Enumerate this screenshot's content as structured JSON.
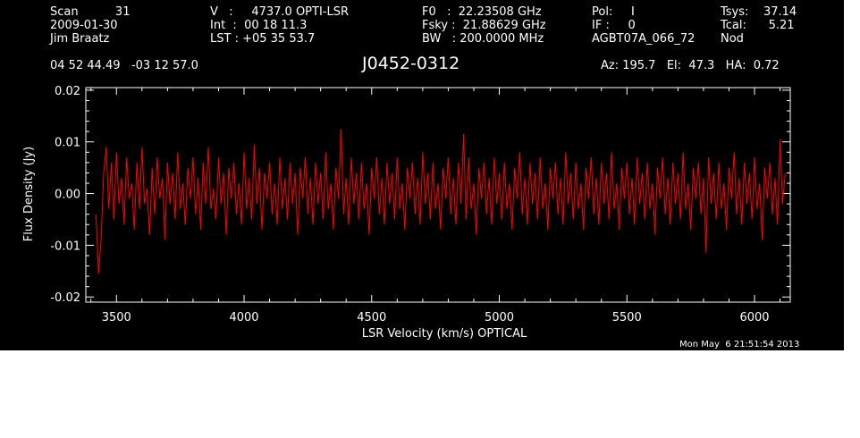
{
  "header": {
    "scan": "Scan          31",
    "date": "2009-01-30",
    "observer": "Jim Braatz",
    "velocity": "V   :     4737.0 OPTI-LSR",
    "int": "Int  :  00 18 11.3",
    "lst": "LST : +05 35 53.7",
    "f0": "F0   :  22.23508 GHz",
    "fsky": "Fsky :  21.88629 GHz",
    "bw": "BW   : 200.0000 MHz",
    "pol": "Pol:     I",
    "if": "IF :     0",
    "project": "AGBT07A_066_72",
    "tsys": "Tsys:    37.14",
    "tcal": "Tcal:      5.21",
    "mode": "Nod",
    "coords": "04 52 44.49   -03 12 57.0",
    "source": "J0452-0312",
    "azelha": "Az: 195.7   El:  47.3   HA:  0.72",
    "timestamp": "Mon May  6 21:51:54 2013"
  },
  "colors": {
    "background": "#000000",
    "axes": "#ffffff",
    "series": "#ff0000"
  },
  "chart_data": {
    "type": "line",
    "xlabel": "LSR Velocity (km/s) OPTICAL",
    "ylabel": "Flux Density (Jy)",
    "xlim": [
      3380,
      6140
    ],
    "ylim": [
      -0.021,
      0.0205
    ],
    "x_ticks": [
      3500,
      4000,
      4500,
      5000,
      5500,
      6000
    ],
    "x_tick_labels": [
      "3500",
      "4000",
      "4500",
      "5000",
      "5500",
      "6000"
    ],
    "y_ticks": [
      -0.02,
      -0.01,
      0.0,
      0.01,
      0.02
    ],
    "y_tick_labels": [
      "-0.02",
      "-0.01",
      "0.00",
      "0.01",
      "0.02"
    ],
    "grid": false,
    "series": [
      {
        "x_start": 3420,
        "x_end": 6080,
        "x_step": 10,
        "y": [
          -0.004,
          -0.0155,
          -0.009,
          0.004,
          0.009,
          -0.003,
          0.006,
          -0.005,
          0.008,
          -0.002,
          0.003,
          -0.006,
          0.007,
          -0.001,
          0.002,
          -0.007,
          0.006,
          -0.003,
          0.009,
          -0.002,
          0.001,
          -0.008,
          0.005,
          -0.004,
          0.007,
          -0.001,
          0.003,
          -0.009,
          0.006,
          -0.002,
          0.004,
          -0.005,
          0.008,
          -0.003,
          0.002,
          -0.006,
          0.005,
          -0.001,
          0.007,
          -0.004,
          0.003,
          -0.007,
          0.006,
          -0.002,
          0.009,
          -0.003,
          0.001,
          -0.005,
          0.007,
          -0.002,
          0.004,
          -0.008,
          0.005,
          -0.001,
          0.006,
          -0.004,
          0.002,
          -0.006,
          0.008,
          -0.003,
          0.003,
          -0.005,
          0.0095,
          -0.002,
          0.005,
          -0.007,
          0.004,
          -0.001,
          0.006,
          -0.004,
          0.002,
          -0.006,
          0.007,
          -0.003,
          0.003,
          -0.005,
          0.006,
          -0.002,
          0.004,
          -0.008,
          0.005,
          -0.001,
          0.007,
          -0.004,
          0.003,
          -0.006,
          0.006,
          -0.002,
          0.004,
          -0.005,
          0.008,
          -0.003,
          0.002,
          -0.007,
          0.005,
          -0.001,
          0.0125,
          -0.004,
          0.003,
          -0.006,
          0.007,
          -0.002,
          0.004,
          -0.005,
          0.006,
          -0.003,
          0.002,
          -0.008,
          0.005,
          -0.001,
          0.007,
          -0.004,
          0.003,
          -0.006,
          0.006,
          -0.002,
          0.004,
          -0.005,
          0.007,
          -0.003,
          0.002,
          -0.007,
          0.005,
          -0.001,
          0.006,
          -0.004,
          0.003,
          -0.006,
          0.008,
          -0.002,
          0.004,
          -0.005,
          0.006,
          -0.003,
          0.002,
          -0.007,
          0.005,
          -0.001,
          0.007,
          -0.004,
          0.003,
          -0.006,
          0.006,
          -0.002,
          0.0115,
          -0.005,
          0.007,
          -0.003,
          0.002,
          -0.008,
          0.005,
          -0.001,
          0.006,
          -0.004,
          0.003,
          -0.006,
          0.007,
          -0.002,
          0.004,
          -0.005,
          0.006,
          -0.003,
          0.002,
          -0.007,
          0.005,
          -0.001,
          0.008,
          -0.004,
          0.003,
          -0.006,
          0.006,
          -0.002,
          0.004,
          -0.005,
          0.007,
          -0.003,
          0.002,
          -0.007,
          0.005,
          -0.001,
          0.006,
          -0.004,
          0.003,
          -0.006,
          0.008,
          -0.002,
          0.004,
          -0.005,
          0.006,
          -0.003,
          0.002,
          -0.007,
          0.005,
          -0.001,
          0.007,
          -0.004,
          0.003,
          -0.006,
          0.006,
          -0.002,
          0.004,
          -0.005,
          0.008,
          -0.003,
          0.002,
          -0.007,
          0.005,
          -0.001,
          0.006,
          -0.004,
          0.003,
          -0.006,
          0.007,
          -0.002,
          0.004,
          -0.005,
          0.006,
          -0.003,
          0.002,
          -0.008,
          0.005,
          -0.001,
          0.007,
          -0.004,
          0.003,
          -0.006,
          0.006,
          -0.002,
          0.004,
          -0.005,
          0.008,
          -0.003,
          0.002,
          -0.007,
          0.005,
          -0.001,
          0.006,
          -0.004,
          0.003,
          -0.0115,
          0.007,
          -0.002,
          0.004,
          -0.005,
          0.006,
          -0.003,
          0.002,
          -0.007,
          0.005,
          -0.001,
          0.008,
          -0.004,
          0.003,
          -0.006,
          0.006,
          -0.002,
          0.004,
          -0.005,
          0.007,
          -0.003,
          0.002,
          -0.009,
          0.005,
          -0.001,
          0.006,
          -0.004,
          0.003,
          -0.006,
          0.0105,
          -0.002,
          0.004
        ]
      }
    ]
  }
}
